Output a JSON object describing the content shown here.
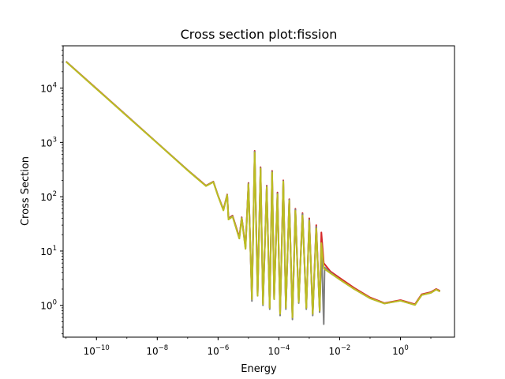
{
  "chart_data": {
    "type": "line",
    "title": "Cross section plot:fission",
    "xlabel": "Energy",
    "ylabel": "Cross Section",
    "xscale": "log",
    "yscale": "log",
    "xlim": [
      8e-12,
      60
    ],
    "ylim": [
      0.26,
      60000
    ],
    "grid": false,
    "legend": "none",
    "x_ticks": [
      {
        "value": 1e-10,
        "base": "10",
        "exp": "−10"
      },
      {
        "value": 1e-08,
        "base": "10",
        "exp": "−8"
      },
      {
        "value": 1e-06,
        "base": "10",
        "exp": "−6"
      },
      {
        "value": 0.0001,
        "base": "10",
        "exp": "−4"
      },
      {
        "value": 0.01,
        "base": "10",
        "exp": "−2"
      },
      {
        "value": 1,
        "base": "10",
        "exp": "0"
      }
    ],
    "y_ticks": [
      {
        "value": 1,
        "base": "10",
        "exp": "0"
      },
      {
        "value": 10,
        "base": "10",
        "exp": "1"
      },
      {
        "value": 100,
        "base": "10",
        "exp": "2"
      },
      {
        "value": 1000,
        "base": "10",
        "exp": "3"
      },
      {
        "value": 10000,
        "base": "10",
        "exp": "4"
      }
    ],
    "series": [
      {
        "color": "#d62728",
        "values": [
          [
            1e-11,
            30900
          ],
          [
            1e-10,
            9800
          ],
          [
            1e-09,
            3100
          ],
          [
            1e-08,
            980
          ],
          [
            1e-07,
            310
          ],
          [
            4e-07,
            160
          ],
          [
            7e-07,
            190
          ],
          [
            1e-06,
            105
          ],
          [
            1.5e-06,
            58
          ],
          [
            2e-06,
            110
          ],
          [
            2.2e-06,
            40
          ],
          [
            3e-06,
            45
          ],
          [
            5e-06,
            18
          ],
          [
            6e-06,
            42
          ],
          [
            8e-06,
            12
          ],
          [
            1e-05,
            180
          ],
          [
            1.3e-05,
            1.3
          ],
          [
            1.6e-05,
            700
          ],
          [
            2e-05,
            1.6
          ],
          [
            2.5e-05,
            350
          ],
          [
            3e-05,
            1.1
          ],
          [
            4e-05,
            160
          ],
          [
            5e-05,
            0.9
          ],
          [
            6e-05,
            300
          ],
          [
            7e-05,
            1.4
          ],
          [
            9e-05,
            120
          ],
          [
            0.00011,
            0.7
          ],
          [
            0.00014,
            200
          ],
          [
            0.00017,
            0.9
          ],
          [
            0.00022,
            90
          ],
          [
            0.00028,
            0.6
          ],
          [
            0.00035,
            60
          ],
          [
            0.00045,
            1.2
          ],
          [
            0.0006,
            50
          ],
          [
            0.0008,
            0.9
          ],
          [
            0.001,
            40
          ],
          [
            0.0013,
            0.7
          ],
          [
            0.0017,
            30
          ],
          [
            0.0022,
            0.8
          ],
          [
            0.0025,
            22
          ],
          [
            0.003,
            6
          ],
          [
            0.005,
            4.2
          ],
          [
            0.01,
            3.2
          ],
          [
            0.03,
            2.1
          ],
          [
            0.1,
            1.4
          ],
          [
            0.3,
            1.1
          ],
          [
            1,
            1.25
          ],
          [
            3,
            1.05
          ],
          [
            5,
            1.6
          ],
          [
            10,
            1.75
          ],
          [
            15,
            2.0
          ],
          [
            20,
            1.85
          ]
        ]
      },
      {
        "color": "#7f7f7f",
        "values": [
          [
            1e-11,
            30700
          ],
          [
            1e-10,
            9700
          ],
          [
            1e-09,
            3080
          ],
          [
            1e-08,
            975
          ],
          [
            1e-07,
            308
          ],
          [
            4e-07,
            158
          ],
          [
            7e-07,
            188
          ],
          [
            1e-06,
            104
          ],
          [
            1.5e-06,
            57
          ],
          [
            2e-06,
            108
          ],
          [
            2.2e-06,
            39
          ],
          [
            3e-06,
            44
          ],
          [
            5e-06,
            17
          ],
          [
            6e-06,
            41
          ],
          [
            8e-06,
            11
          ],
          [
            1e-05,
            175
          ],
          [
            1.3e-05,
            1.2
          ],
          [
            1.6e-05,
            680
          ],
          [
            2e-05,
            1.5
          ],
          [
            2.5e-05,
            340
          ],
          [
            3e-05,
            1.0
          ],
          [
            4e-05,
            155
          ],
          [
            5e-05,
            0.85
          ],
          [
            6e-05,
            290
          ],
          [
            7e-05,
            1.3
          ],
          [
            9e-05,
            115
          ],
          [
            0.00011,
            0.65
          ],
          [
            0.00014,
            195
          ],
          [
            0.00017,
            0.85
          ],
          [
            0.00022,
            88
          ],
          [
            0.00028,
            0.55
          ],
          [
            0.00035,
            58
          ],
          [
            0.00045,
            1.1
          ],
          [
            0.0006,
            48
          ],
          [
            0.0008,
            0.85
          ],
          [
            0.001,
            38
          ],
          [
            0.0013,
            0.65
          ],
          [
            0.0017,
            28
          ],
          [
            0.0022,
            0.75
          ],
          [
            0.0025,
            12
          ],
          [
            0.003,
            0.45
          ],
          [
            0.0032,
            5
          ],
          [
            0.005,
            4.0
          ],
          [
            0.01,
            3.0
          ],
          [
            0.03,
            2.0
          ],
          [
            0.1,
            1.35
          ],
          [
            0.3,
            1.08
          ],
          [
            1,
            1.22
          ],
          [
            3,
            1.02
          ],
          [
            5,
            1.55
          ],
          [
            10,
            1.7
          ],
          [
            15,
            1.95
          ],
          [
            20,
            1.8
          ]
        ]
      },
      {
        "color": "#bcbd22",
        "values": [
          [
            1e-11,
            30500
          ],
          [
            1e-10,
            9650
          ],
          [
            1e-09,
            3050
          ],
          [
            1e-08,
            970
          ],
          [
            1e-07,
            305
          ],
          [
            4e-07,
            157
          ],
          [
            7e-07,
            186
          ],
          [
            1e-06,
            103
          ],
          [
            1.5e-06,
            56
          ],
          [
            2e-06,
            107
          ],
          [
            2.2e-06,
            38
          ],
          [
            3e-06,
            43
          ],
          [
            5e-06,
            17
          ],
          [
            6e-06,
            40
          ],
          [
            8e-06,
            11
          ],
          [
            1e-05,
            170
          ],
          [
            1.3e-05,
            1.3
          ],
          [
            1.6e-05,
            650
          ],
          [
            2e-05,
            1.5
          ],
          [
            2.5e-05,
            330
          ],
          [
            3e-05,
            1.05
          ],
          [
            4e-05,
            150
          ],
          [
            5e-05,
            0.9
          ],
          [
            6e-05,
            280
          ],
          [
            7e-05,
            1.3
          ],
          [
            9e-05,
            110
          ],
          [
            0.00011,
            0.7
          ],
          [
            0.00014,
            190
          ],
          [
            0.00017,
            0.9
          ],
          [
            0.00022,
            85
          ],
          [
            0.00028,
            0.6
          ],
          [
            0.00035,
            55
          ],
          [
            0.00045,
            1.15
          ],
          [
            0.0006,
            45
          ],
          [
            0.0008,
            0.9
          ],
          [
            0.001,
            36
          ],
          [
            0.0013,
            0.7
          ],
          [
            0.0017,
            26
          ],
          [
            0.0022,
            0.8
          ],
          [
            0.0025,
            14
          ],
          [
            0.003,
            4.8
          ],
          [
            0.005,
            3.9
          ],
          [
            0.01,
            3.0
          ],
          [
            0.03,
            2.0
          ],
          [
            0.1,
            1.35
          ],
          [
            0.3,
            1.08
          ],
          [
            1,
            1.22
          ],
          [
            3,
            1.02
          ],
          [
            5,
            1.55
          ],
          [
            10,
            1.7
          ],
          [
            15,
            1.95
          ],
          [
            20,
            1.8
          ]
        ]
      }
    ]
  }
}
